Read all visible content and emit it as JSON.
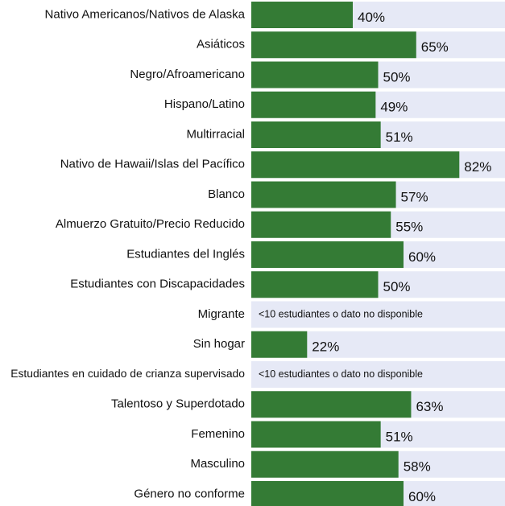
{
  "chart_data": {
    "type": "bar",
    "orientation": "horizontal",
    "categories": [
      "Nativo Americanos/Nativos de Alaska",
      "Asiáticos",
      "Negro/Afroamericano",
      "Hispano/Latino",
      "Multirracial",
      "Nativo de Hawaii/Islas del Pacífico",
      "Blanco",
      "Almuerzo Gratuito/Precio Reducido",
      "Estudiantes del Inglés",
      "Estudiantes con Discapacidades",
      "Migrante",
      "Sin hogar",
      "Estudiantes en cuidado de crianza supervisado",
      "Talentoso y Superdotado",
      "Femenino",
      "Masculino",
      "Género no conforme"
    ],
    "values": [
      40,
      65,
      50,
      49,
      51,
      82,
      57,
      55,
      60,
      50,
      null,
      22,
      null,
      63,
      51,
      58,
      60
    ],
    "value_labels": [
      "40%",
      "65%",
      "50%",
      "49%",
      "51%",
      "82%",
      "57%",
      "55%",
      "60%",
      "50%",
      null,
      "22%",
      null,
      "63%",
      "51%",
      "58%",
      "60%"
    ],
    "missing_label": "<10 estudiantes o dato no disponible",
    "color": "#347b35",
    "background_color": "#e6e9f6",
    "xlim": [
      0,
      100
    ]
  }
}
